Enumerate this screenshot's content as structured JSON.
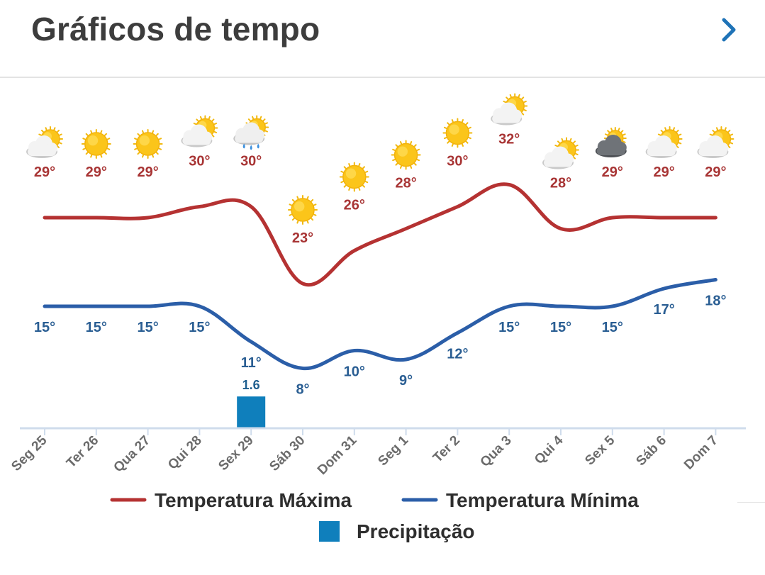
{
  "header": {
    "title": "Gráficos de tempo",
    "nav_icon": "chevron-right-icon"
  },
  "colors": {
    "max_line": "#b53232",
    "min_line": "#2b5ea8",
    "max_label": "#a83535",
    "min_label": "#2a5e93",
    "precip_bar": "#0f7fbc",
    "precip_label": "#1f5f8f",
    "axis": "#cfdcec",
    "tick_label": "#6b6b6b"
  },
  "chart_data": {
    "type": "line",
    "categories": [
      "Seg 25",
      "Ter 26",
      "Qua 27",
      "Qui 28",
      "Sex 29",
      "Sáb 30",
      "Dom 31",
      "Seg 1",
      "Ter 2",
      "Qua 3",
      "Qui 4",
      "Sex 5",
      "Sáb 6",
      "Dom 7"
    ],
    "icons": [
      "partly-cloudy-icon",
      "sun-icon",
      "sun-icon",
      "partly-cloudy-icon",
      "rain-icon",
      "sun-icon",
      "sun-icon",
      "sun-icon",
      "sun-icon",
      "partly-cloudy-icon",
      "partly-cloudy-icon",
      "overcast-icon",
      "partly-cloudy-icon",
      "partly-cloudy-icon"
    ],
    "series": [
      {
        "name": "Temperatura Máxima",
        "values": [
          29,
          29,
          29,
          30,
          30,
          23,
          26,
          28,
          30,
          32,
          28,
          29,
          29,
          29
        ]
      },
      {
        "name": "Temperatura Mínima",
        "values": [
          15,
          15,
          15,
          15,
          11,
          8,
          10,
          9,
          12,
          15,
          15,
          15,
          17,
          18
        ]
      }
    ],
    "max_labels": [
      "29°",
      "29°",
      "29°",
      "30°",
      "30°",
      "23°",
      "26°",
      "28°",
      "30°",
      "32°",
      "28°",
      "29°",
      "29°",
      "29°"
    ],
    "min_labels": [
      "15°",
      "15°",
      "15°",
      "15°",
      "11°",
      "8°",
      "10°",
      "9°",
      "12°",
      "15°",
      "15°",
      "15°",
      "17°",
      "18°"
    ],
    "precipitation": {
      "name": "Precipitação",
      "values": [
        0,
        0,
        0,
        0,
        1.6,
        0,
        0,
        0,
        0,
        0,
        0,
        0,
        0,
        0
      ],
      "labels": [
        "",
        "",
        "",
        "",
        "1.6",
        "",
        "",
        "",
        "",
        "",
        "",
        "",
        "",
        ""
      ]
    },
    "legend": [
      {
        "label": "Temperatura Máxima",
        "kind": "line",
        "color": "#b53232"
      },
      {
        "label": "Temperatura Mínima",
        "kind": "line",
        "color": "#2b5ea8"
      },
      {
        "label": "Precipitação",
        "kind": "square",
        "color": "#0f7fbc"
      }
    ],
    "legend_position": "bottom",
    "grid": false
  }
}
